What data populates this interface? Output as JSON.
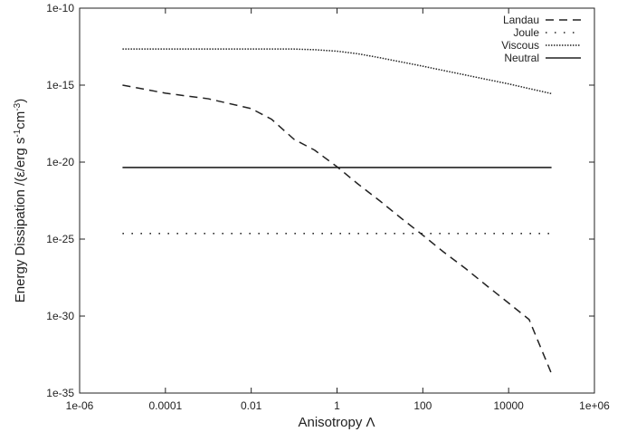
{
  "chart_data": {
    "type": "line",
    "title": "",
    "xlabel": "Anisotropy Λ",
    "ylabel_main": "Energy Dissipation /(ε/erg s",
    "ylabel_sup1": "-1",
    "ylabel_mid": "cm",
    "ylabel_sup2": "-3",
    "ylabel_end": ")",
    "x_scale": "log",
    "y_scale": "log",
    "xlim": [
      1e-06,
      1000000
    ],
    "ylim": [
      1e-35,
      1e-10
    ],
    "x_ticks": [
      {
        "value": 1e-06,
        "label": "1e-06"
      },
      {
        "value": 0.0001,
        "label": "0.0001"
      },
      {
        "value": 0.01,
        "label": "0.01"
      },
      {
        "value": 1,
        "label": "1"
      },
      {
        "value": 100,
        "label": "100"
      },
      {
        "value": 10000,
        "label": "10000"
      },
      {
        "value": 1000000,
        "label": "1e+06"
      }
    ],
    "y_ticks": [
      {
        "value": 1e-35,
        "label": "1e-35"
      },
      {
        "value": 1e-30,
        "label": "1e-30"
      },
      {
        "value": 1e-25,
        "label": "1e-25"
      },
      {
        "value": 1e-20,
        "label": "1e-20"
      },
      {
        "value": 1e-15,
        "label": "1e-15"
      },
      {
        "value": 1e-10,
        "label": "1e-10"
      }
    ],
    "grid": false,
    "legend_position": "top-right",
    "series": [
      {
        "name": "Landau",
        "style": "dashed",
        "x": [
          1e-05,
          0.0001,
          0.001,
          0.01,
          0.03,
          0.1,
          0.3,
          1,
          3,
          10,
          30,
          100,
          300,
          1000,
          3000,
          10000,
          30000,
          100000
        ],
        "y": [
          1e-15,
          3e-16,
          1.3e-16,
          3e-17,
          6e-18,
          3e-19,
          6e-20,
          5e-21,
          4e-22,
          3e-23,
          2.5e-24,
          1.8e-25,
          1.5e-26,
          1.2e-27,
          1e-28,
          7e-30,
          6e-31,
          1.8e-34
        ]
      },
      {
        "name": "Joule",
        "style": "sparse-dotted",
        "x": [
          1e-05,
          100000
        ],
        "y": [
          2.3e-25,
          2.3e-25
        ]
      },
      {
        "name": "Viscous",
        "style": "dotted",
        "x": [
          1e-05,
          0.0001,
          0.001,
          0.01,
          0.1,
          0.3,
          1,
          3,
          10,
          100,
          1000,
          10000,
          100000
        ],
        "y": [
          2.2e-13,
          2.2e-13,
          2.2e-13,
          2.2e-13,
          2.2e-13,
          2e-13,
          1.6e-13,
          1.1e-13,
          6e-14,
          1.7e-14,
          4.5e-15,
          1.2e-15,
          2.8e-16
        ]
      },
      {
        "name": "Neutral",
        "style": "solid",
        "x": [
          1e-05,
          100000
        ],
        "y": [
          4.5e-21,
          4.5e-21
        ]
      }
    ]
  }
}
